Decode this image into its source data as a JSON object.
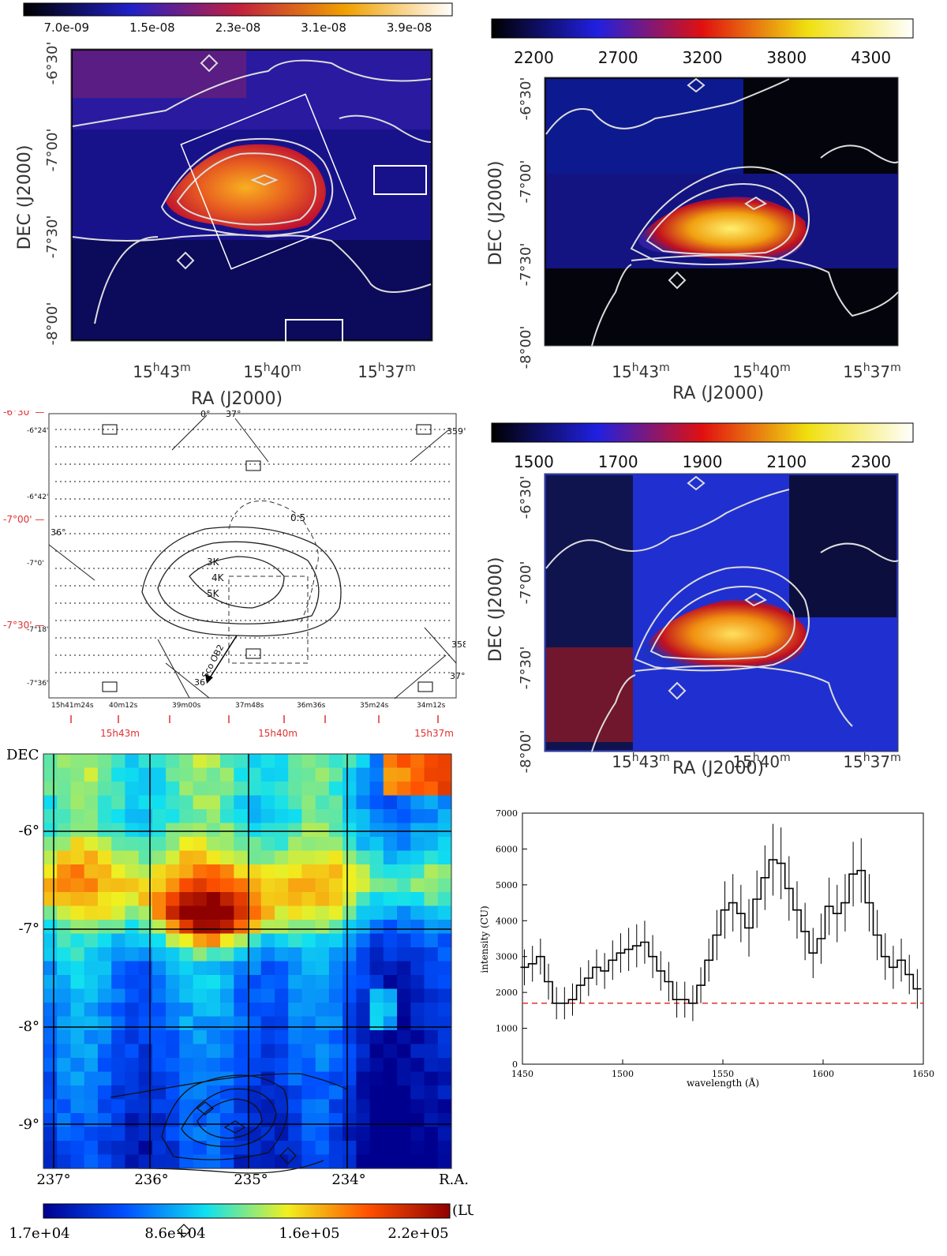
{
  "chart_data": [
    {
      "id": "panel-a",
      "type": "heatmap",
      "title": "",
      "colorbar": {
        "ticks": [
          "7.0e-09",
          "1.5e-08",
          "2.3e-08",
          "3.1e-08",
          "3.9e-08"
        ],
        "colormap": "blue-red-yellow-white"
      },
      "xlabel": "RA (J2000)",
      "ylabel": "DEC (J2000)",
      "xticks": [
        {
          "h": "15",
          "m": "43"
        },
        {
          "h": "15",
          "m": "40"
        },
        {
          "h": "15",
          "m": "37"
        }
      ],
      "yticks": [
        "-6°30'",
        "-7°00'",
        "-7°30'",
        "-8°00'"
      ]
    },
    {
      "id": "panel-b",
      "type": "heatmap",
      "colorbar": {
        "ticks": [
          "2200",
          "2700",
          "3200",
          "3800",
          "4300"
        ],
        "colormap": "black-blue-red-yellow-white"
      },
      "xlabel": "RA (J2000)",
      "ylabel": "DEC (J2000)",
      "xticks": [
        {
          "h": "15",
          "m": "43"
        },
        {
          "h": "15",
          "m": "40"
        },
        {
          "h": "15",
          "m": "37"
        }
      ],
      "yticks": [
        "-6°30'",
        "-7°00'",
        "-7°30'",
        "-8°00'"
      ]
    },
    {
      "id": "panel-c",
      "type": "diagram",
      "left_ticks_red": [
        "-6°30' —",
        "-7°00' —",
        "-7°30' —"
      ],
      "left_ticks_black": [
        "-6°24'",
        "-6°42'",
        "-7°0'",
        "-7°18'",
        "-7°36'"
      ],
      "bottom_ticks_black": [
        "15h41m24s",
        "40m12s",
        "39m00s",
        "37m48s",
        "36m36s",
        "35m24s",
        "34m12s"
      ],
      "bottom_ticks_red": [
        "15h43m",
        "15h40m",
        "15h37m"
      ],
      "gal_labels": [
        "0°",
        "37°",
        "359°",
        "36°",
        "358°",
        "37°",
        "36°"
      ],
      "contour_labels": [
        "0.5",
        "3K",
        "4K",
        "5K"
      ],
      "source_label": "Sco OB2"
    },
    {
      "id": "panel-d",
      "type": "heatmap",
      "colorbar": {
        "ticks": [
          "1500",
          "1700",
          "1900",
          "2100",
          "2300"
        ],
        "colormap": "black-blue-red-yellow-white"
      },
      "xlabel": "RA (J2000)",
      "ylabel": "DEC (J2000)",
      "xticks": [
        {
          "h": "15",
          "m": "43"
        },
        {
          "h": "15",
          "m": "40"
        },
        {
          "h": "15",
          "m": "37"
        }
      ],
      "yticks": [
        "-6°30'",
        "-7°00'",
        "-7°30'",
        "-8°00'"
      ]
    },
    {
      "id": "panel-e",
      "type": "heatmap",
      "ylabel": "DEC",
      "xlabel": "R.A.",
      "yticks": [
        "-6°",
        "-7°",
        "-8°",
        "-9°"
      ],
      "xticks": [
        "237°",
        "236°",
        "235°",
        "234°"
      ],
      "colorbar": {
        "ticks": [
          "1.7e+04",
          "8.6e+04",
          "1.6e+05",
          "2.2e+05"
        ],
        "unit": "(LU)",
        "colormap": "jet"
      }
    },
    {
      "id": "panel-f",
      "type": "line",
      "xlabel": "wavelength (Å)",
      "ylabel": "intensity (CU)",
      "xlim": [
        1450,
        1650
      ],
      "ylim": [
        0,
        7000
      ],
      "xticks": [
        "1450",
        "1500",
        "1550",
        "1600",
        "1650"
      ],
      "yticks": [
        "0",
        "1000",
        "2000",
        "3000",
        "4000",
        "5000",
        "6000",
        "7000"
      ],
      "baseline": 1700,
      "series": [
        {
          "name": "spectrum",
          "x": [
            1451,
            1455,
            1459,
            1463,
            1467,
            1471,
            1475,
            1479,
            1483,
            1487,
            1491,
            1495,
            1499,
            1503,
            1507,
            1511,
            1515,
            1519,
            1523,
            1527,
            1531,
            1535,
            1539,
            1543,
            1547,
            1551,
            1555,
            1559,
            1563,
            1567,
            1571,
            1575,
            1579,
            1583,
            1587,
            1591,
            1595,
            1599,
            1603,
            1607,
            1611,
            1615,
            1619,
            1623,
            1627,
            1631,
            1635,
            1639,
            1643,
            1647
          ],
          "values": [
            2700,
            2800,
            3000,
            2300,
            1700,
            1700,
            1800,
            2200,
            2400,
            2700,
            2600,
            2900,
            3100,
            3200,
            3300,
            3400,
            3000,
            2600,
            2300,
            1800,
            1800,
            1700,
            2200,
            2900,
            3600,
            4300,
            4500,
            4200,
            3800,
            4600,
            5200,
            5700,
            5600,
            4900,
            4300,
            3700,
            3100,
            3500,
            4400,
            4200,
            4500,
            5300,
            5400,
            4500,
            3600,
            3000,
            2700,
            2900,
            2500,
            2100
          ],
          "errors": [
            500,
            500,
            500,
            500,
            450,
            450,
            450,
            500,
            500,
            500,
            500,
            550,
            550,
            600,
            600,
            600,
            600,
            550,
            550,
            500,
            500,
            500,
            500,
            600,
            700,
            800,
            800,
            800,
            800,
            800,
            900,
            1000,
            1000,
            900,
            800,
            800,
            700,
            700,
            800,
            800,
            800,
            900,
            900,
            800,
            700,
            650,
            600,
            600,
            550,
            550
          ]
        }
      ]
    }
  ]
}
